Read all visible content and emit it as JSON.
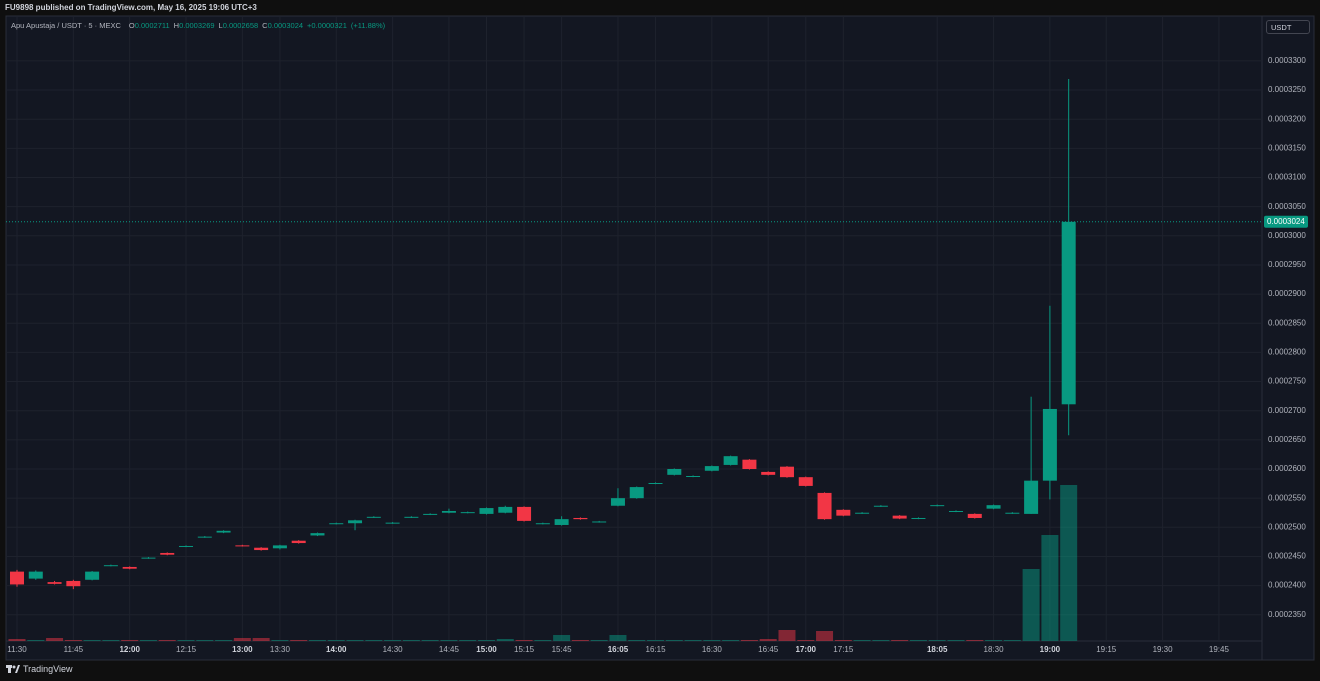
{
  "header": {
    "title": "FU9898 published on TradingView.com, May 16, 2025 19:06 UTC+3"
  },
  "footer": {
    "brand": "TradingView"
  },
  "chart_data": {
    "type": "candlestick",
    "symbol": "Apu Apustaja / USDT · 5 · MEXC",
    "legend": [
      {
        "label": "O",
        "value": 0.0002711
      },
      {
        "label": "H",
        "value": 0.0003269
      },
      {
        "label": "L",
        "value": 0.0002658
      },
      {
        "label": "C",
        "value": 0.0003024
      }
    ],
    "change": "+0.0000321",
    "change_pct": "(+11.88%)",
    "currency": "USDT",
    "last_price": 0.0003024,
    "up_color": "#089981",
    "down_color": "#f23645",
    "grid": true,
    "categories": [
      "11:30",
      null,
      null,
      "11:45",
      null,
      null,
      "12:00",
      null,
      null,
      "12:15",
      null,
      null,
      "13:00",
      null,
      "13:30",
      null,
      null,
      "14:00",
      null,
      null,
      "14:30",
      null,
      null,
      "14:45",
      null,
      "15:00",
      null,
      "15:15",
      null,
      "15:45",
      null,
      null,
      "16:05",
      null,
      "16:15",
      null,
      null,
      "16:30",
      null,
      null,
      "16:45",
      null,
      "17:00",
      null,
      "17:15",
      null,
      null,
      null,
      null,
      "18:05",
      null,
      null,
      "18:30",
      null,
      null,
      "19:00",
      null,
      null,
      "19:15",
      null,
      null,
      "19:30",
      null,
      null,
      "19:45",
      null,
      null
    ],
    "open": [
      0.0002424,
      0.0002412,
      0.0002406,
      0.0002408,
      0.000241,
      0.0002434,
      0.0002432,
      0.0002447,
      0.0002456,
      0.0002467,
      0.0002483,
      0.0002491,
      0.0002469,
      0.0002465,
      0.0002464,
      0.0002477,
      0.0002486,
      0.0002506,
      0.0002507,
      0.0002517,
      0.0002507,
      0.0002517,
      0.0002522,
      0.0002525,
      0.0002525,
      0.0002523,
      0.0002525,
      0.0002535,
      0.0002506,
      0.0002504,
      0.0002516,
      0.0002509,
      0.0002537,
      0.000255,
      0.0002575,
      0.000259,
      0.0002587,
      0.0002597,
      0.0002607,
      0.0002616,
      0.0002595,
      0.0002604,
      0.0002586,
      0.0002559,
      0.000253,
      0.0002524,
      0.0002536,
      0.000252,
      0.0002515,
      0.0002537,
      0.0002527,
      0.0002523,
      0.0002532,
      0.0002524,
      0.0002523,
      0.000258,
      0.0002711,
      null,
      null,
      null,
      null,
      null,
      null,
      null,
      null,
      null,
      null
    ],
    "high": [
      0.0002427,
      0.0002426,
      0.0002408,
      0.000241,
      0.0002425,
      0.0002436,
      0.0002433,
      0.0002449,
      0.0002457,
      0.0002469,
      0.0002485,
      0.0002495,
      0.000247,
      0.0002466,
      0.000247,
      0.0002478,
      0.0002491,
      0.0002508,
      0.0002513,
      0.0002519,
      0.0002509,
      0.0002519,
      0.0002524,
      0.0002532,
      0.0002527,
      0.0002534,
      0.0002537,
      0.0002536,
      0.0002508,
      0.0002519,
      0.0002517,
      0.0002511,
      0.0002567,
      0.000257,
      0.0002577,
      0.0002601,
      0.0002589,
      0.0002606,
      0.0002623,
      0.0002617,
      0.0002596,
      0.0002605,
      0.0002587,
      0.000256,
      0.0002531,
      0.0002526,
      0.0002538,
      0.0002521,
      0.0002517,
      0.0002539,
      0.0002529,
      0.0002524,
      0.0002539,
      0.0002526,
      0.0002724,
      0.000288,
      0.0003269,
      null,
      null,
      null,
      null,
      null,
      null,
      null,
      null,
      null,
      null
    ],
    "low": [
      0.0002398,
      0.000241,
      0.0002402,
      0.0002394,
      0.0002409,
      0.0002433,
      0.0002428,
      0.0002446,
      0.0002452,
      0.0002466,
      0.0002482,
      0.000249,
      0.0002467,
      0.000246,
      0.0002462,
      0.0002472,
      0.0002485,
      0.0002505,
      0.0002495,
      0.0002516,
      0.0002506,
      0.0002516,
      0.0002521,
      0.0002524,
      0.0002524,
      0.0002522,
      0.0002524,
      0.000251,
      0.0002505,
      0.0002503,
      0.0002513,
      0.0002508,
      0.0002536,
      0.0002549,
      0.0002574,
      0.0002589,
      0.0002586,
      0.0002596,
      0.0002606,
      0.0002599,
      0.0002589,
      0.0002585,
      0.000257,
      0.0002513,
      0.0002519,
      0.0002523,
      0.0002535,
      0.0002514,
      0.0002514,
      0.0002536,
      0.0002526,
      0.0002515,
      0.0002531,
      0.0002523,
      0.0002523,
      0.0002548,
      0.0002658,
      null,
      null,
      null,
      null,
      null,
      null,
      null,
      null,
      null,
      null
    ],
    "close": [
      0.0002402,
      0.0002424,
      0.0002403,
      0.0002399,
      0.0002424,
      0.0002435,
      0.0002429,
      0.0002448,
      0.0002453,
      0.0002468,
      0.0002484,
      0.0002494,
      0.0002468,
      0.0002461,
      0.0002469,
      0.0002473,
      0.000249,
      0.0002507,
      0.0002512,
      0.0002518,
      0.0002508,
      0.0002518,
      0.0002523,
      0.0002528,
      0.0002526,
      0.0002533,
      0.0002535,
      0.0002511,
      0.0002507,
      0.0002514,
      0.0002514,
      0.000251,
      0.000255,
      0.0002569,
      0.0002576,
      0.00026,
      0.0002588,
      0.0002605,
      0.0002622,
      0.00026,
      0.000259,
      0.0002586,
      0.0002571,
      0.0002514,
      0.000252,
      0.0002525,
      0.0002537,
      0.0002515,
      0.0002516,
      0.0002538,
      0.0002528,
      0.0002516,
      0.0002538,
      0.0002525,
      0.000258,
      0.0002703,
      0.0003024,
      null,
      null,
      null,
      null,
      null,
      null,
      null,
      null,
      null,
      null
    ],
    "volume": [
      2,
      1,
      3,
      1,
      1,
      1,
      1,
      1,
      1,
      1,
      1,
      1,
      3,
      3,
      1,
      1,
      1,
      1,
      1,
      1,
      1,
      1,
      1,
      1,
      1,
      1,
      2,
      1,
      1,
      6,
      1,
      1,
      6,
      1,
      1,
      1,
      1,
      1,
      1,
      1,
      2,
      11,
      1,
      10,
      1,
      1,
      1,
      1,
      1,
      1,
      1,
      1,
      1,
      1,
      72,
      106,
      156,
      null,
      null,
      null,
      null,
      null,
      null,
      null,
      null,
      null,
      null
    ],
    "ylim": [
      0.0002305,
      0.0003377
    ],
    "yticks": [
      {
        "value": 0.00033,
        "label": "0.0003300"
      },
      {
        "value": 0.000325,
        "label": "0.0003250"
      },
      {
        "value": 0.00032,
        "label": "0.0003200"
      },
      {
        "value": 0.000315,
        "label": "0.0003150"
      },
      {
        "value": 0.00031,
        "label": "0.0003100"
      },
      {
        "value": 0.000305,
        "label": "0.0003050"
      },
      {
        "value": 0.0003,
        "label": "0.0003000"
      },
      {
        "value": 0.000295,
        "label": "0.0002950"
      },
      {
        "value": 0.00029,
        "label": "0.0002900"
      },
      {
        "value": 0.000285,
        "label": "0.0002850"
      },
      {
        "value": 0.00028,
        "label": "0.0002800"
      },
      {
        "value": 0.000275,
        "label": "0.0002750"
      },
      {
        "value": 0.00027,
        "label": "0.0002700"
      },
      {
        "value": 0.000265,
        "label": "0.0002650"
      },
      {
        "value": 0.00026,
        "label": "0.0002600"
      },
      {
        "value": 0.000255,
        "label": "0.0002550"
      },
      {
        "value": 0.00025,
        "label": "0.0002500"
      },
      {
        "value": 0.000245,
        "label": "0.0002450"
      },
      {
        "value": 0.00024,
        "label": "0.0002400"
      },
      {
        "value": 0.000235,
        "label": "0.0002350"
      }
    ]
  }
}
